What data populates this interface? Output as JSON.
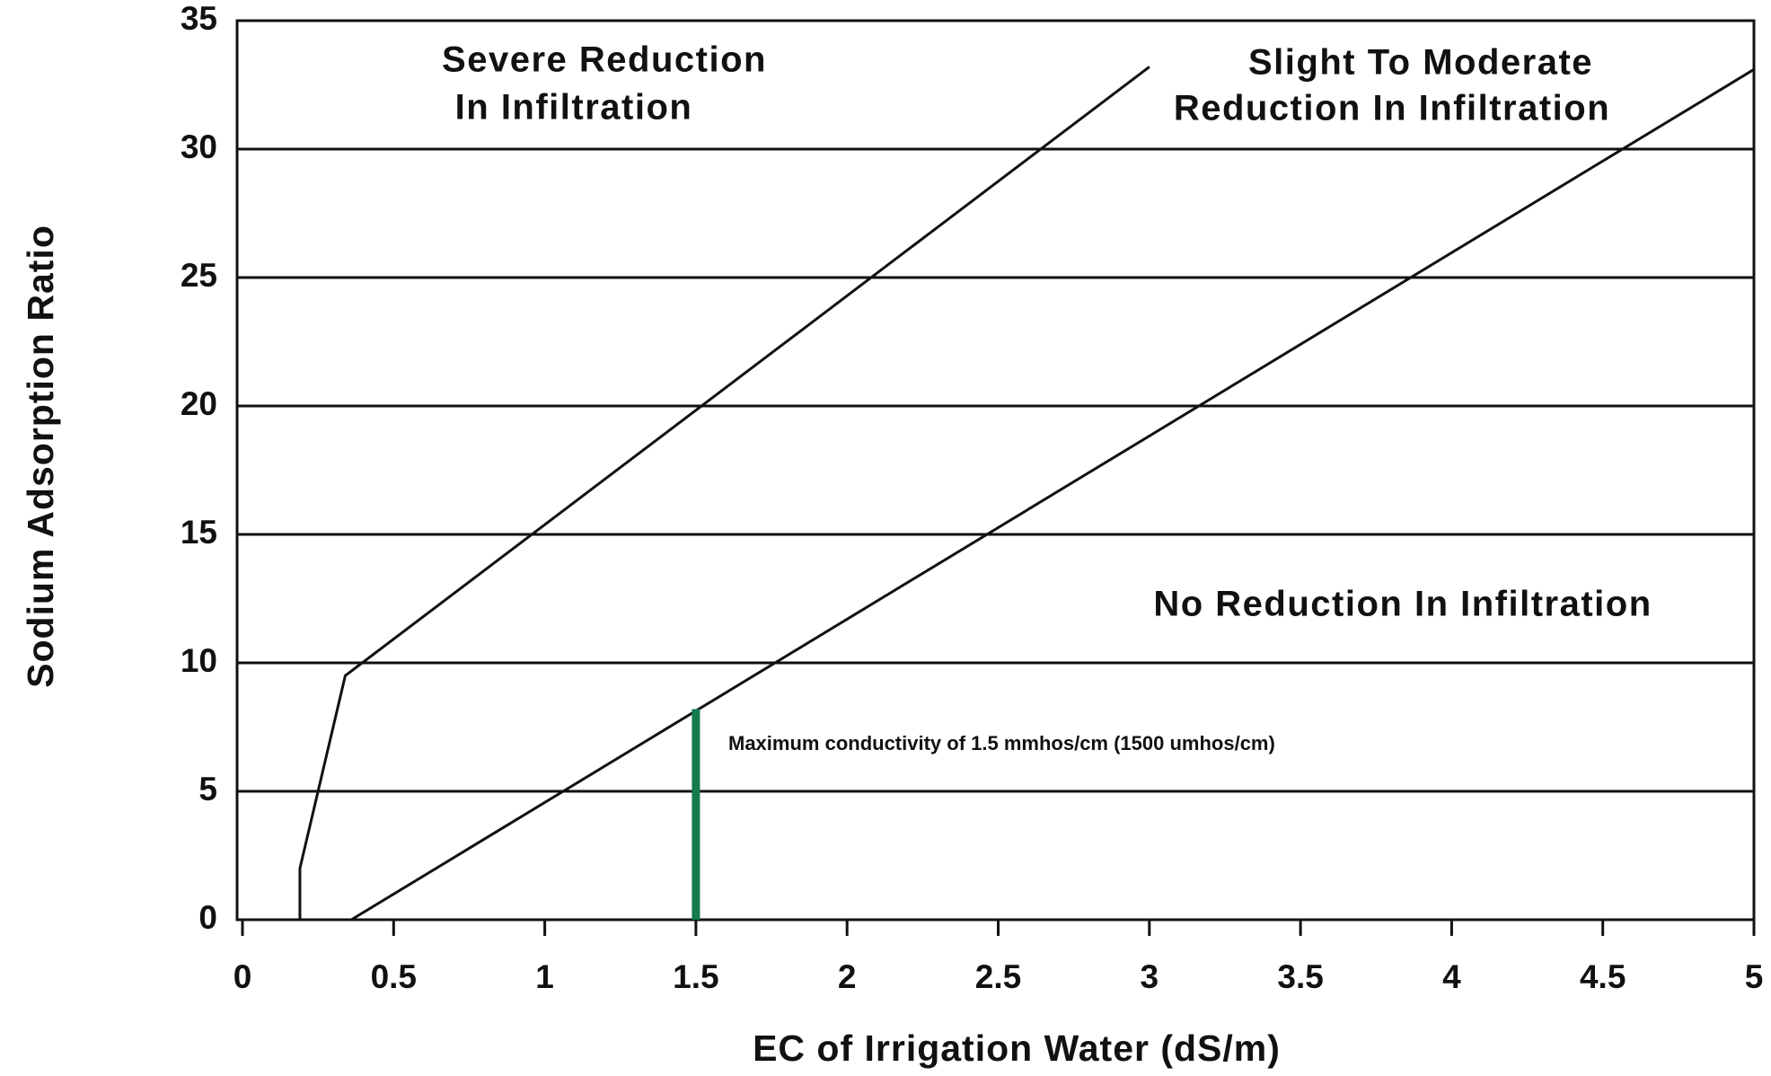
{
  "chart_data": {
    "type": "line",
    "x_label": "EC of Irrigation Water (dS/m)",
    "y_label": "Sodium Adsorption Ratio",
    "xlim": [
      0,
      5
    ],
    "ylim": [
      0,
      35
    ],
    "xticks": [
      0,
      0.5,
      1,
      1.5,
      2,
      2.5,
      3,
      3.5,
      4,
      4.5,
      5
    ],
    "yticks": [
      0,
      5,
      10,
      15,
      20,
      25,
      30,
      35
    ],
    "grid": true,
    "series": [
      {
        "color": "#111111",
        "x": [
          0.19,
          0.19,
          0.34,
          3.0
        ],
        "values": [
          0,
          2,
          9.5,
          33.2
        ]
      },
      {
        "color": "#111111",
        "x": [
          0.36,
          5.0
        ],
        "values": [
          0,
          33.1
        ]
      }
    ],
    "markers": [
      {
        "color": "#157a4c",
        "x": 1.5,
        "y": [
          0,
          8.2
        ],
        "label": "Maximum conductivity of 1.5 mmhos/cm (1500 umhos/cm)"
      }
    ],
    "annotations": [
      {
        "lines": [
          "Severe Reduction",
          "In Infiltration"
        ]
      },
      {
        "lines": [
          "Slight To Moderate",
          "Reduction In Infiltration"
        ]
      },
      {
        "lines": [
          "No Reduction In Infiltration"
        ]
      }
    ]
  }
}
